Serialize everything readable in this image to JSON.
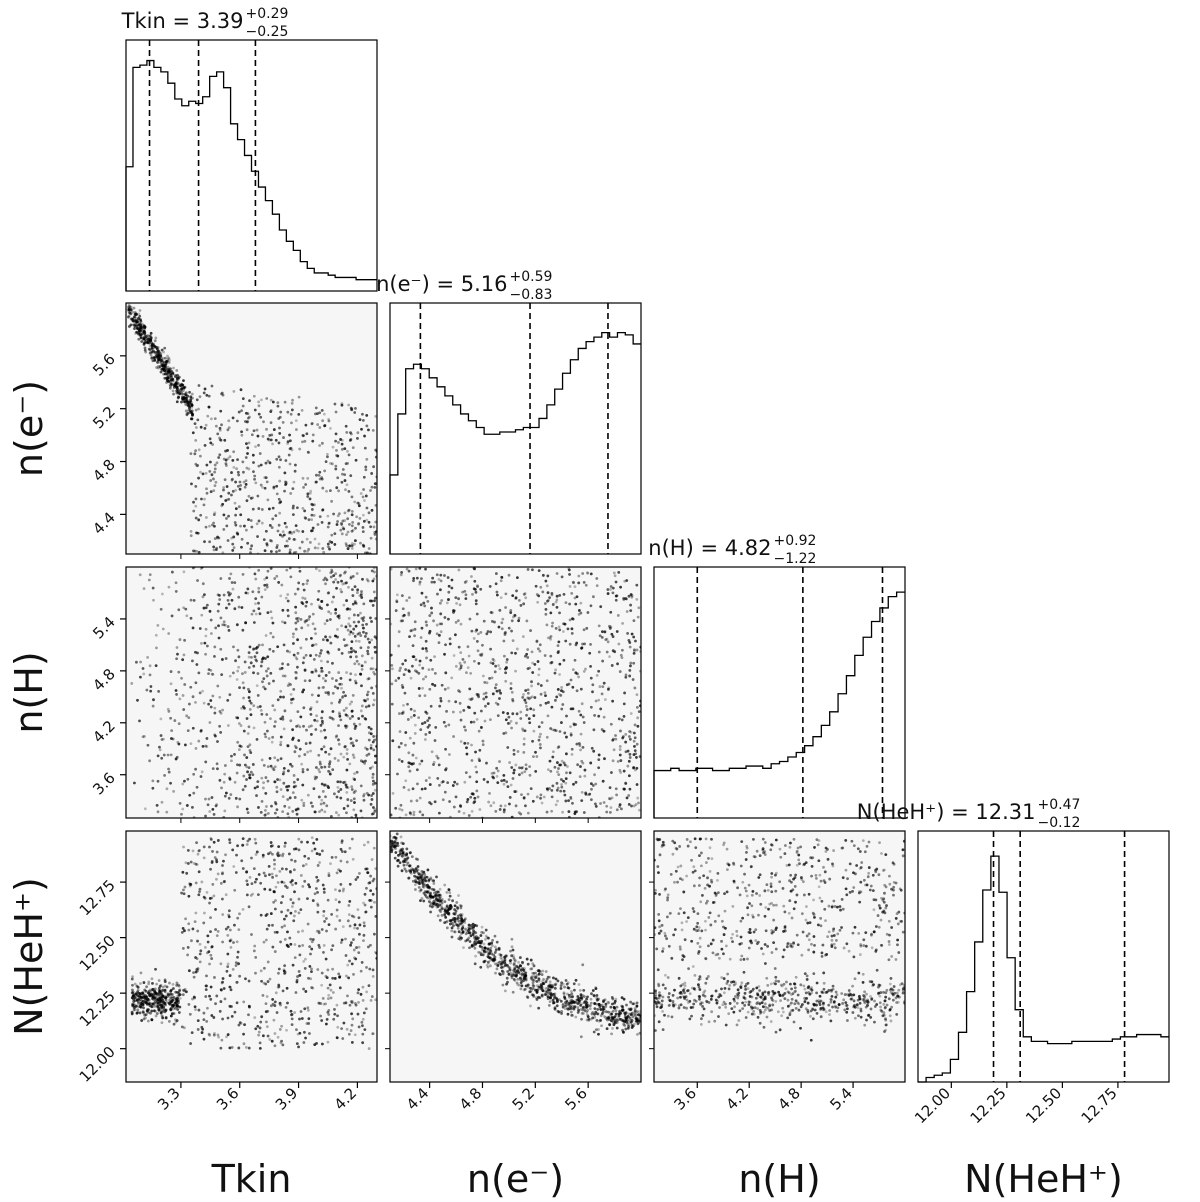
{
  "chart_data": {
    "type": "corner",
    "parameters": [
      {
        "key": "tkin",
        "label": "Tkin",
        "range": [
          3.02,
          4.3
        ],
        "ticks": [
          3.3,
          3.6,
          3.9,
          4.2
        ],
        "tick_labels": [
          "3.3",
          "3.6",
          "3.9",
          "4.2"
        ]
      },
      {
        "key": "ne",
        "label": "n(e⁻)",
        "range": [
          4.1,
          6.0
        ],
        "ticks": [
          4.4,
          4.8,
          5.2,
          5.6
        ],
        "tick_labels": [
          "4.4",
          "4.8",
          "5.2",
          "5.6"
        ]
      },
      {
        "key": "nh",
        "label": "n(H)",
        "range": [
          3.1,
          6.0
        ],
        "ticks": [
          3.6,
          4.2,
          4.8,
          5.4
        ],
        "tick_labels": [
          "3.6",
          "4.2",
          "4.8",
          "5.4"
        ]
      },
      {
        "key": "nheh",
        "label": "N(HeH⁺)",
        "range": [
          11.85,
          12.98
        ],
        "ticks": [
          12.0,
          12.25,
          12.5,
          12.75
        ],
        "tick_labels": [
          "12.00",
          "12.25",
          "12.50",
          "12.75"
        ]
      }
    ],
    "titles": [
      {
        "name": "Tkin",
        "value": "3.39",
        "plus": "+0.29",
        "minus": "−0.25"
      },
      {
        "name": "n(e⁻)",
        "value": "5.16",
        "plus": "+0.59",
        "minus": "−0.83"
      },
      {
        "name": "n(H)",
        "value": "4.82",
        "plus": "+0.92",
        "minus": "−1.22"
      },
      {
        "name": "N(HeH⁺)",
        "value": "12.31",
        "plus": "+0.47",
        "minus": "−0.12"
      }
    ],
    "quantiles": [
      [
        3.14,
        3.39,
        3.68
      ],
      [
        4.33,
        5.16,
        5.75
      ],
      [
        3.6,
        4.82,
        5.74
      ],
      [
        12.19,
        12.31,
        12.78
      ]
    ],
    "histograms": [
      [
        0.55,
        0.99,
        1.0,
        1.02,
        0.99,
        0.97,
        0.92,
        0.85,
        0.82,
        0.84,
        0.83,
        0.86,
        0.95,
        0.97,
        0.9,
        0.74,
        0.67,
        0.6,
        0.53,
        0.46,
        0.4,
        0.34,
        0.27,
        0.22,
        0.18,
        0.13,
        0.1,
        0.08,
        0.08,
        0.07,
        0.06,
        0.06,
        0.06,
        0.05,
        0.05,
        0.05
      ],
      [
        0.35,
        0.62,
        0.82,
        0.84,
        0.82,
        0.78,
        0.74,
        0.7,
        0.66,
        0.62,
        0.59,
        0.56,
        0.53,
        0.53,
        0.54,
        0.54,
        0.55,
        0.56,
        0.56,
        0.6,
        0.66,
        0.73,
        0.8,
        0.86,
        0.91,
        0.94,
        0.96,
        0.98,
        0.96,
        0.98,
        0.97,
        0.93
      ],
      [
        0.21,
        0.21,
        0.22,
        0.21,
        0.21,
        0.22,
        0.22,
        0.21,
        0.21,
        0.22,
        0.22,
        0.23,
        0.23,
        0.22,
        0.24,
        0.25,
        0.27,
        0.29,
        0.32,
        0.36,
        0.41,
        0.47,
        0.55,
        0.63,
        0.72,
        0.8,
        0.87,
        0.93,
        0.98,
        1.0
      ],
      [
        0.0,
        0.02,
        0.03,
        0.04,
        0.1,
        0.22,
        0.4,
        0.62,
        0.85,
        1.0,
        0.84,
        0.55,
        0.32,
        0.2,
        0.18,
        0.18,
        0.17,
        0.17,
        0.17,
        0.18,
        0.18,
        0.18,
        0.18,
        0.18,
        0.19,
        0.2,
        0.2,
        0.21,
        0.21,
        0.21,
        0.2
      ]
    ],
    "xlabels": [
      "Tkin",
      "n(e⁻)",
      "n(H)",
      "N(HeH⁺)"
    ],
    "ylabels": [
      "n(e⁻)",
      "n(H)",
      "N(HeH⁺)"
    ],
    "colors": {
      "hist": "#000000",
      "density": "#000000",
      "background": "#ffffff"
    }
  }
}
